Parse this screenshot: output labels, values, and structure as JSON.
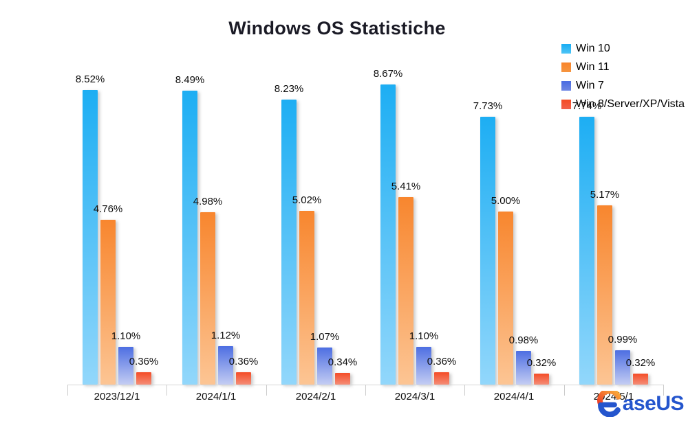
{
  "chart_data": {
    "type": "bar",
    "title": "Windows OS Statistiche",
    "categories": [
      "2023/12/1",
      "2024/1/1",
      "2024/2/1",
      "2024/3/1",
      "2024/4/1",
      "2024/5/1"
    ],
    "series": [
      {
        "name": "Win 10",
        "values": [
          8.52,
          8.49,
          8.23,
          8.67,
          7.73,
          7.74
        ],
        "labels": [
          "8.52%",
          "8.49%",
          "8.23%",
          "8.67%",
          "7.73%",
          "7.74%"
        ],
        "color_top": "#1daef3",
        "color_bottom": "#92d7fb",
        "legend_color": "#4ec5f6"
      },
      {
        "name": "Win 11",
        "values": [
          4.76,
          4.98,
          5.02,
          5.41,
          5.0,
          5.17
        ],
        "labels": [
          "4.76%",
          "4.98%",
          "5.02%",
          "5.41%",
          "5.00%",
          "5.17%"
        ],
        "color_top": "#f8862e",
        "color_bottom": "#fcc594",
        "legend_color": "#f republic"
      },
      {
        "name": "Win 7",
        "values": [
          1.1,
          1.12,
          1.07,
          1.1,
          0.98,
          0.99
        ],
        "labels": [
          "1.10%",
          "1.12%",
          "1.07%",
          "1.10%",
          "0.98%",
          "0.99%"
        ],
        "color_top": "#4d6ee2",
        "color_bottom": "#c4cdf3",
        "legend_color": "#6e86e3"
      },
      {
        "name": "Win 8/Server/XP/Vista",
        "values": [
          0.36,
          0.36,
          0.34,
          0.36,
          0.32,
          0.32
        ],
        "labels": [
          "0.36%",
          "0.36%",
          "0.34%",
          "0.36%",
          "0.32%",
          "0.32%"
        ],
        "color_top": "#f44d27",
        "color_bottom": "#f58d77",
        "legend_color": "#f2614b"
      }
    ],
    "ylim": [
      0,
      9
    ],
    "grid": false,
    "legend_position": "top-right",
    "value_label_format": "percent",
    "axis_color": "#d4d4d4",
    "text_color": "#0d0d0d"
  },
  "logo": {
    "text": "aseUS",
    "blue": "#2455cd",
    "orange_start": "#f9b03c",
    "orange_end": "#ee3d24"
  }
}
